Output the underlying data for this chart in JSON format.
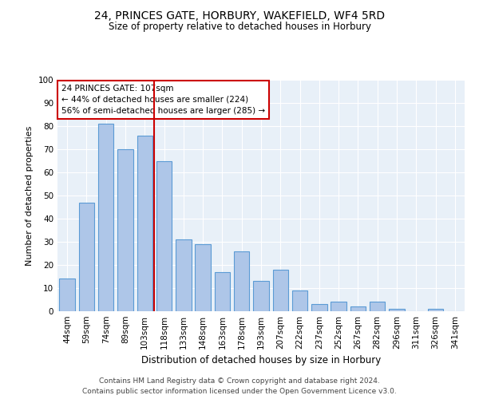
{
  "title": "24, PRINCES GATE, HORBURY, WAKEFIELD, WF4 5RD",
  "subtitle": "Size of property relative to detached houses in Horbury",
  "xlabel": "Distribution of detached houses by size in Horbury",
  "ylabel": "Number of detached properties",
  "categories": [
    "44sqm",
    "59sqm",
    "74sqm",
    "89sqm",
    "103sqm",
    "118sqm",
    "133sqm",
    "148sqm",
    "163sqm",
    "178sqm",
    "193sqm",
    "207sqm",
    "222sqm",
    "237sqm",
    "252sqm",
    "267sqm",
    "282sqm",
    "296sqm",
    "311sqm",
    "326sqm",
    "341sqm"
  ],
  "values": [
    14,
    47,
    81,
    70,
    76,
    65,
    31,
    29,
    17,
    26,
    13,
    18,
    9,
    3,
    4,
    2,
    4,
    1,
    0,
    1,
    0
  ],
  "bar_color": "#aec6e8",
  "bar_edge_color": "#5b9bd5",
  "bar_width": 0.8,
  "vline_color": "#cc0000",
  "ylim": [
    0,
    100
  ],
  "yticks": [
    0,
    10,
    20,
    30,
    40,
    50,
    60,
    70,
    80,
    90,
    100
  ],
  "annotation_text": "24 PRINCES GATE: 107sqm\n← 44% of detached houses are smaller (224)\n56% of semi-detached houses are larger (285) →",
  "annotation_box_color": "#ffffff",
  "annotation_box_edge": "#cc0000",
  "bg_color": "#e8f0f8",
  "footer_line1": "Contains HM Land Registry data © Crown copyright and database right 2024.",
  "footer_line2": "Contains public sector information licensed under the Open Government Licence v3.0."
}
